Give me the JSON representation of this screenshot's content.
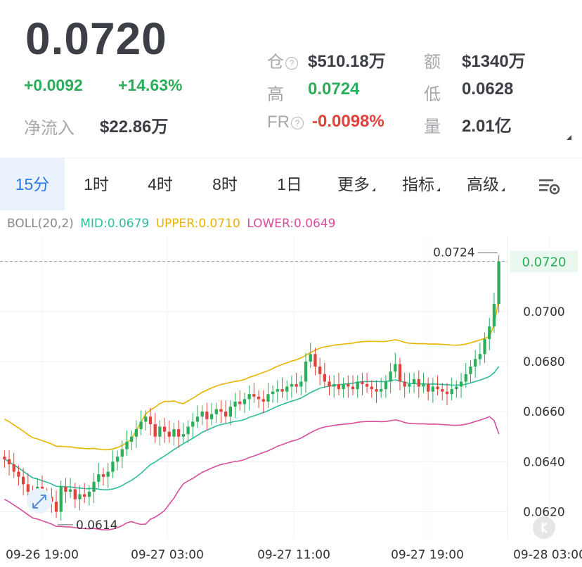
{
  "price": "0.0720",
  "change_abs": "+0.0092",
  "change_pct": "+14.63%",
  "net_inflow_label": "净流入",
  "net_inflow_value": "$22.86万",
  "stats": {
    "oi_label": "仓",
    "oi_value": "$510.18万",
    "turnover_label": "额",
    "turnover_value": "$1340万",
    "high_label": "高",
    "high_value": "0.0724",
    "low_label": "低",
    "low_value": "0.0628",
    "fr_label": "FR",
    "fr_value": "-0.0098%",
    "vol_label": "量",
    "vol_value": "2.01亿"
  },
  "tabs": [
    "15分",
    "1时",
    "4时",
    "8时",
    "1日",
    "更多",
    "指标",
    "高级"
  ],
  "active_tab": "15分",
  "boll": {
    "name": "BOLL(20,2)",
    "mid": "MID:0.0679",
    "upper": "UPPER:0.0710",
    "lower": "LOWER:0.0649",
    "mid_color": "#2ebd9b",
    "upper_color": "#e8b400",
    "lower_color": "#d64e9c"
  },
  "colors": {
    "up": "#2bae5a",
    "down": "#e0433c",
    "accent": "#2a7ae4"
  },
  "chart_data": {
    "type": "candlestick",
    "y_ticks": [
      "0.0620",
      "0.0640",
      "0.0660",
      "0.0680",
      "0.0700"
    ],
    "x_ticks": [
      "09-26 19:00",
      "09-27 03:00",
      "09-27 11:00",
      "09-27 19:00",
      "09-28 03:00"
    ],
    "current_price_label": "0.0720",
    "max_marker": "0.0724",
    "min_marker": "0.0614",
    "ylim": [
      0.0612,
      0.073
    ],
    "close": [
      0.0641,
      0.0639,
      0.0636,
      0.0634,
      0.0631,
      0.0628,
      0.0626,
      0.063,
      0.0627,
      0.0626,
      0.0624,
      0.062,
      0.063,
      0.0628,
      0.0629,
      0.0625,
      0.0627,
      0.0626,
      0.0628,
      0.0632,
      0.0635,
      0.0634,
      0.0636,
      0.064,
      0.0642,
      0.0645,
      0.0648,
      0.065,
      0.0653,
      0.0656,
      0.0658,
      0.0655,
      0.065,
      0.0654,
      0.0652,
      0.065,
      0.0653,
      0.065,
      0.0651,
      0.0654,
      0.0656,
      0.0658,
      0.066,
      0.0657,
      0.0659,
      0.0661,
      0.066,
      0.0658,
      0.0662,
      0.0664,
      0.0663,
      0.0665,
      0.0667,
      0.0666,
      0.0665,
      0.0664,
      0.0667,
      0.0668,
      0.0669,
      0.0668,
      0.067,
      0.0671,
      0.067,
      0.0672,
      0.068,
      0.0683,
      0.0678,
      0.0675,
      0.0672,
      0.067,
      0.0671,
      0.0669,
      0.0671,
      0.067,
      0.0669,
      0.0672,
      0.0671,
      0.067,
      0.0669,
      0.0668,
      0.0669,
      0.0672,
      0.0676,
      0.0679,
      0.0672,
      0.067,
      0.0671,
      0.0673,
      0.067,
      0.0671,
      0.0668,
      0.067,
      0.0669,
      0.0668,
      0.0667,
      0.0669,
      0.067,
      0.0672,
      0.0675,
      0.0678,
      0.0681,
      0.0683,
      0.0689,
      0.0694,
      0.0703,
      0.072
    ]
  }
}
